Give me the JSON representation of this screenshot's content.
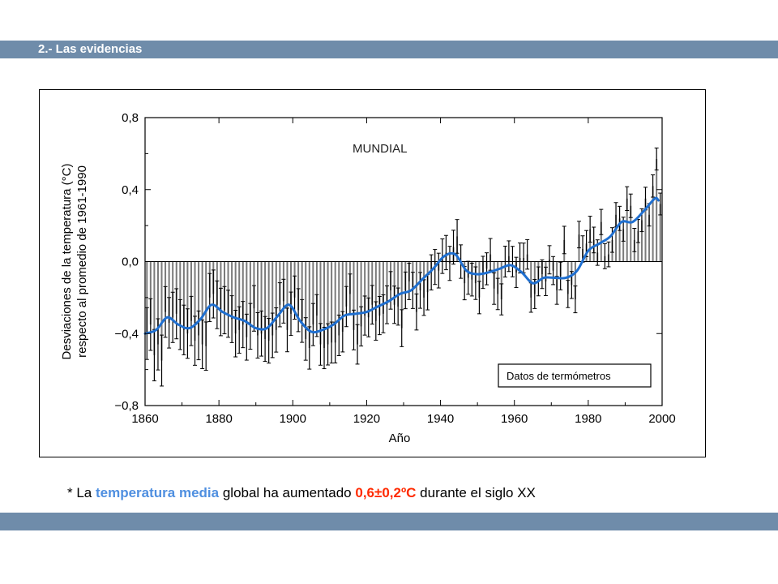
{
  "slide": {
    "section_title": "2.- Las evidencias",
    "caption": {
      "prefix": "* La ",
      "highlight_1": "temperatura media",
      "middle": " global ha aumentado ",
      "highlight_2": "0,6±0,2ºC",
      "suffix": " durante el siglo XX"
    },
    "colors": {
      "band": "#6f8caa",
      "highlight_1": "#4f8fe0",
      "highlight_2": "#ff2a00"
    }
  },
  "chart_data": {
    "type": "bar",
    "title": "MUNDIAL",
    "xlabel": "Año",
    "ylabel": "Desviaciones de la temperatura (°C)",
    "ylabel_2": "respecto al promedio de  1961-1990",
    "legend": "Datos de termómetros",
    "legend_position": "bottom-right",
    "xlim": [
      1860,
      2000
    ],
    "ylim": [
      -0.8,
      0.8
    ],
    "x_ticks": [
      1860,
      1880,
      1900,
      1920,
      1940,
      1960,
      1980,
      2000
    ],
    "y_ticks": [
      0.8,
      0.4,
      0.0,
      -0.4,
      -0.8
    ],
    "y_tick_labels": [
      "0,8",
      "0,4",
      "0,0",
      "−0,4",
      "−0,8"
    ],
    "grid": false,
    "colors": {
      "bars": "#7a7a7a",
      "smoothed": "#1f6fd0",
      "error_bars": "#000000"
    },
    "bars_x": [
      1860,
      1861,
      1862,
      1863,
      1864,
      1865,
      1866,
      1867,
      1868,
      1869,
      1870,
      1871,
      1872,
      1873,
      1874,
      1875,
      1876,
      1877,
      1878,
      1879,
      1880,
      1881,
      1882,
      1883,
      1884,
      1885,
      1886,
      1887,
      1888,
      1889,
      1890,
      1891,
      1892,
      1893,
      1894,
      1895,
      1896,
      1897,
      1898,
      1899,
      1900,
      1901,
      1902,
      1903,
      1904,
      1905,
      1906,
      1907,
      1908,
      1909,
      1910,
      1911,
      1912,
      1913,
      1914,
      1915,
      1916,
      1917,
      1918,
      1919,
      1920,
      1921,
      1922,
      1923,
      1924,
      1925,
      1926,
      1927,
      1928,
      1929,
      1930,
      1931,
      1932,
      1933,
      1934,
      1935,
      1936,
      1937,
      1938,
      1939,
      1940,
      1941,
      1942,
      1943,
      1944,
      1945,
      1946,
      1947,
      1948,
      1949,
      1950,
      1951,
      1952,
      1953,
      1954,
      1955,
      1956,
      1957,
      1958,
      1959,
      1960,
      1961,
      1962,
      1963,
      1964,
      1965,
      1966,
      1967,
      1968,
      1969,
      1970,
      1971,
      1972,
      1973,
      1974,
      1975,
      1976,
      1977,
      1978,
      1979,
      1980,
      1981,
      1982,
      1983,
      1984,
      1985,
      1986,
      1987,
      1988,
      1989,
      1990,
      1991,
      1992,
      1993,
      1994,
      1995,
      1996,
      1997,
      1998,
      1999
    ],
    "bars_values": [
      -0.4,
      -0.35,
      -0.52,
      -0.46,
      -0.55,
      -0.28,
      -0.34,
      -0.31,
      -0.29,
      -0.35,
      -0.38,
      -0.4,
      -0.33,
      -0.44,
      -0.41,
      -0.46,
      -0.47,
      -0.2,
      -0.18,
      -0.24,
      -0.28,
      -0.27,
      -0.29,
      -0.32,
      -0.4,
      -0.38,
      -0.35,
      -0.42,
      -0.36,
      -0.26,
      -0.41,
      -0.4,
      -0.43,
      -0.44,
      -0.41,
      -0.38,
      -0.24,
      -0.22,
      -0.38,
      -0.29,
      -0.2,
      -0.27,
      -0.33,
      -0.43,
      -0.48,
      -0.35,
      -0.3,
      -0.46,
      -0.48,
      -0.46,
      -0.45,
      -0.45,
      -0.41,
      -0.39,
      -0.25,
      -0.18,
      -0.38,
      -0.46,
      -0.36,
      -0.3,
      -0.31,
      -0.24,
      -0.33,
      -0.3,
      -0.29,
      -0.24,
      -0.16,
      -0.24,
      -0.25,
      -0.37,
      -0.16,
      -0.11,
      -0.16,
      -0.28,
      -0.16,
      -0.2,
      -0.17,
      -0.06,
      -0.03,
      -0.05,
      0.03,
      0.05,
      -0.01,
      0.08,
      0.14,
      0.0,
      -0.12,
      -0.09,
      -0.1,
      -0.12,
      -0.2,
      -0.06,
      -0.04,
      0.04,
      -0.15,
      -0.18,
      -0.21,
      0.0,
      0.03,
      0.0,
      -0.06,
      0.02,
      0.02,
      0.04,
      -0.2,
      -0.18,
      -0.11,
      -0.07,
      -0.11,
      0.01,
      -0.05,
      -0.16,
      -0.08,
      0.12,
      -0.18,
      -0.13,
      -0.21,
      0.15,
      0.07,
      0.1,
      0.18,
      0.12,
      0.05,
      0.22,
      0.03,
      0.04,
      0.12,
      0.26,
      0.24,
      0.18,
      0.35,
      0.31,
      0.12,
      0.17,
      0.23,
      0.35,
      0.26,
      0.42,
      0.57,
      0.32
    ],
    "smoothed_x": [
      1860,
      1863,
      1866,
      1869,
      1872,
      1875,
      1878,
      1881,
      1884,
      1887,
      1890,
      1893,
      1896,
      1899,
      1902,
      1905,
      1908,
      1911,
      1914,
      1917,
      1920,
      1923,
      1926,
      1929,
      1932,
      1935,
      1938,
      1941,
      1944,
      1947,
      1950,
      1953,
      1956,
      1959,
      1962,
      1965,
      1968,
      1971,
      1974,
      1977,
      1980,
      1983,
      1986,
      1989,
      1992,
      1995,
      1998,
      1999
    ],
    "smoothed_values": [
      -0.4,
      -0.38,
      -0.31,
      -0.35,
      -0.37,
      -0.32,
      -0.24,
      -0.28,
      -0.31,
      -0.33,
      -0.37,
      -0.37,
      -0.3,
      -0.24,
      -0.33,
      -0.39,
      -0.38,
      -0.35,
      -0.3,
      -0.29,
      -0.28,
      -0.25,
      -0.22,
      -0.18,
      -0.16,
      -0.1,
      -0.04,
      0.03,
      0.04,
      -0.05,
      -0.07,
      -0.06,
      -0.04,
      -0.02,
      -0.06,
      -0.12,
      -0.09,
      -0.09,
      -0.09,
      -0.05,
      0.06,
      0.1,
      0.14,
      0.22,
      0.22,
      0.28,
      0.35,
      0.34
    ]
  }
}
